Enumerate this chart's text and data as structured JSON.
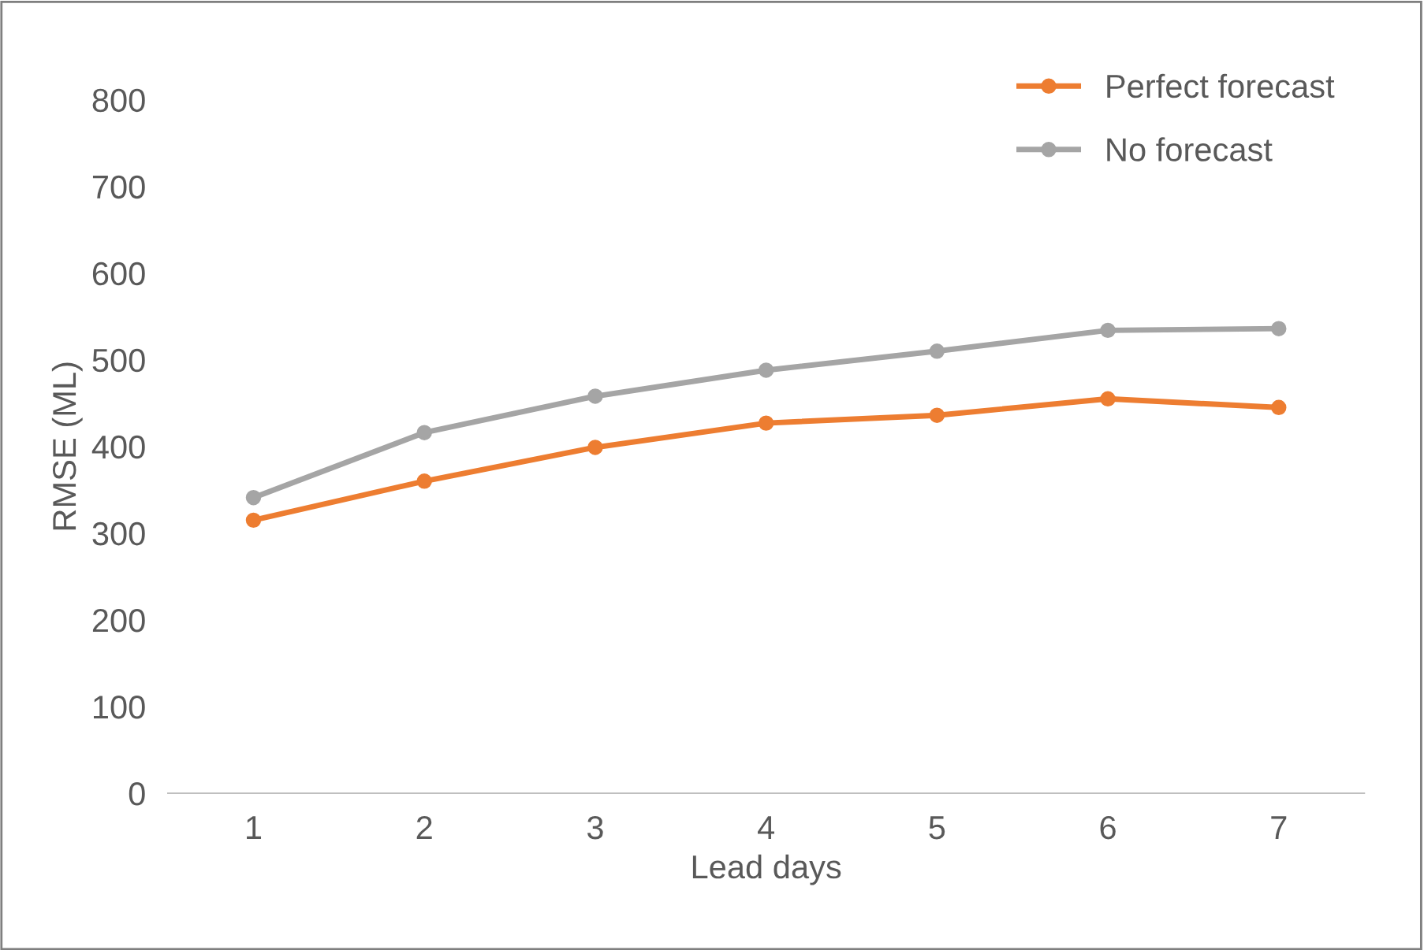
{
  "chart_data": {
    "type": "line",
    "xlabel": "Lead days",
    "ylabel": "RMSE (ML)",
    "categories": [
      "1",
      "2",
      "3",
      "4",
      "5",
      "6",
      "7"
    ],
    "series": [
      {
        "name": "Perfect forecast",
        "color": "#ed7d31",
        "values": [
          315,
          360,
          399,
          427,
          436,
          455,
          445
        ]
      },
      {
        "name": "No forecast",
        "color": "#a5a5a5",
        "values": [
          341,
          416,
          458,
          488,
          510,
          534,
          536
        ]
      }
    ],
    "ylim": [
      0,
      800
    ],
    "yticks": [
      0,
      100,
      200,
      300,
      400,
      500,
      600,
      700,
      800
    ],
    "grid": false,
    "legend": "top right",
    "marker": "circle",
    "line_style": "solid"
  }
}
